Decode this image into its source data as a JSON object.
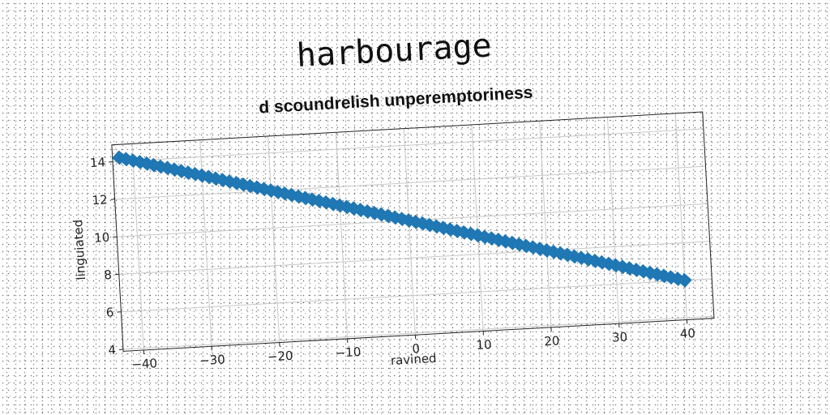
{
  "title": "harbourage",
  "chart_data": {
    "type": "scatter",
    "subtitle": "d scoundrelish unperemptoriness",
    "xlabel": "ravined",
    "ylabel": "linguiated",
    "xlim": [
      -43,
      44
    ],
    "ylim": [
      3.9,
      14.9
    ],
    "xticks": [
      -40,
      -30,
      -20,
      -10,
      0,
      10,
      20,
      30,
      40
    ],
    "yticks": [
      4,
      6,
      8,
      10,
      12,
      14
    ],
    "grid": true,
    "marker": "diamond",
    "color": "#1f77b4",
    "series": [
      {
        "x": [
          -42,
          -41,
          -40,
          -39,
          -38,
          -37,
          -36,
          -35,
          -34,
          -33,
          -32,
          -31,
          -30,
          -29,
          -28,
          -27,
          -26,
          -25,
          -24,
          -23,
          -22,
          -21,
          -20,
          -19,
          -18,
          -17,
          -16,
          -15,
          -14,
          -13,
          -12,
          -11,
          -10,
          -9,
          -8,
          -7,
          -6,
          -5,
          -4,
          -3,
          -2,
          -1,
          0,
          1,
          2,
          3,
          4,
          5,
          6,
          7,
          8,
          9,
          10,
          11,
          12,
          13,
          14,
          15,
          16,
          17,
          18,
          19,
          20,
          21,
          22,
          23,
          24,
          25,
          26,
          27,
          28,
          29,
          30,
          31,
          32,
          33,
          34,
          35,
          36,
          37,
          38,
          39,
          40
        ],
        "y": [
          14.2,
          14.1,
          14.0,
          13.9,
          13.8,
          13.7,
          13.6,
          13.5,
          13.4,
          13.3,
          13.2,
          13.1,
          13.0,
          12.9,
          12.8,
          12.7,
          12.6,
          12.5,
          12.4,
          12.3,
          12.2,
          12.1,
          12.0,
          11.9,
          11.8,
          11.7,
          11.6,
          11.5,
          11.4,
          11.3,
          11.2,
          11.1,
          11.0,
          10.9,
          10.8,
          10.7,
          10.6,
          10.5,
          10.4,
          10.3,
          10.2,
          10.1,
          10.0,
          9.9,
          9.8,
          9.7,
          9.6,
          9.5,
          9.4,
          9.3,
          9.2,
          9.1,
          9.0,
          8.9,
          8.8,
          8.7,
          8.6,
          8.5,
          8.4,
          8.3,
          8.2,
          8.1,
          8.0,
          7.9,
          7.8,
          7.7,
          7.6,
          7.5,
          7.4,
          7.3,
          7.2,
          7.1,
          7.0,
          6.9,
          6.8,
          6.7,
          6.6,
          6.5,
          6.4,
          6.3,
          6.2,
          6.1,
          6.0
        ]
      }
    ]
  }
}
